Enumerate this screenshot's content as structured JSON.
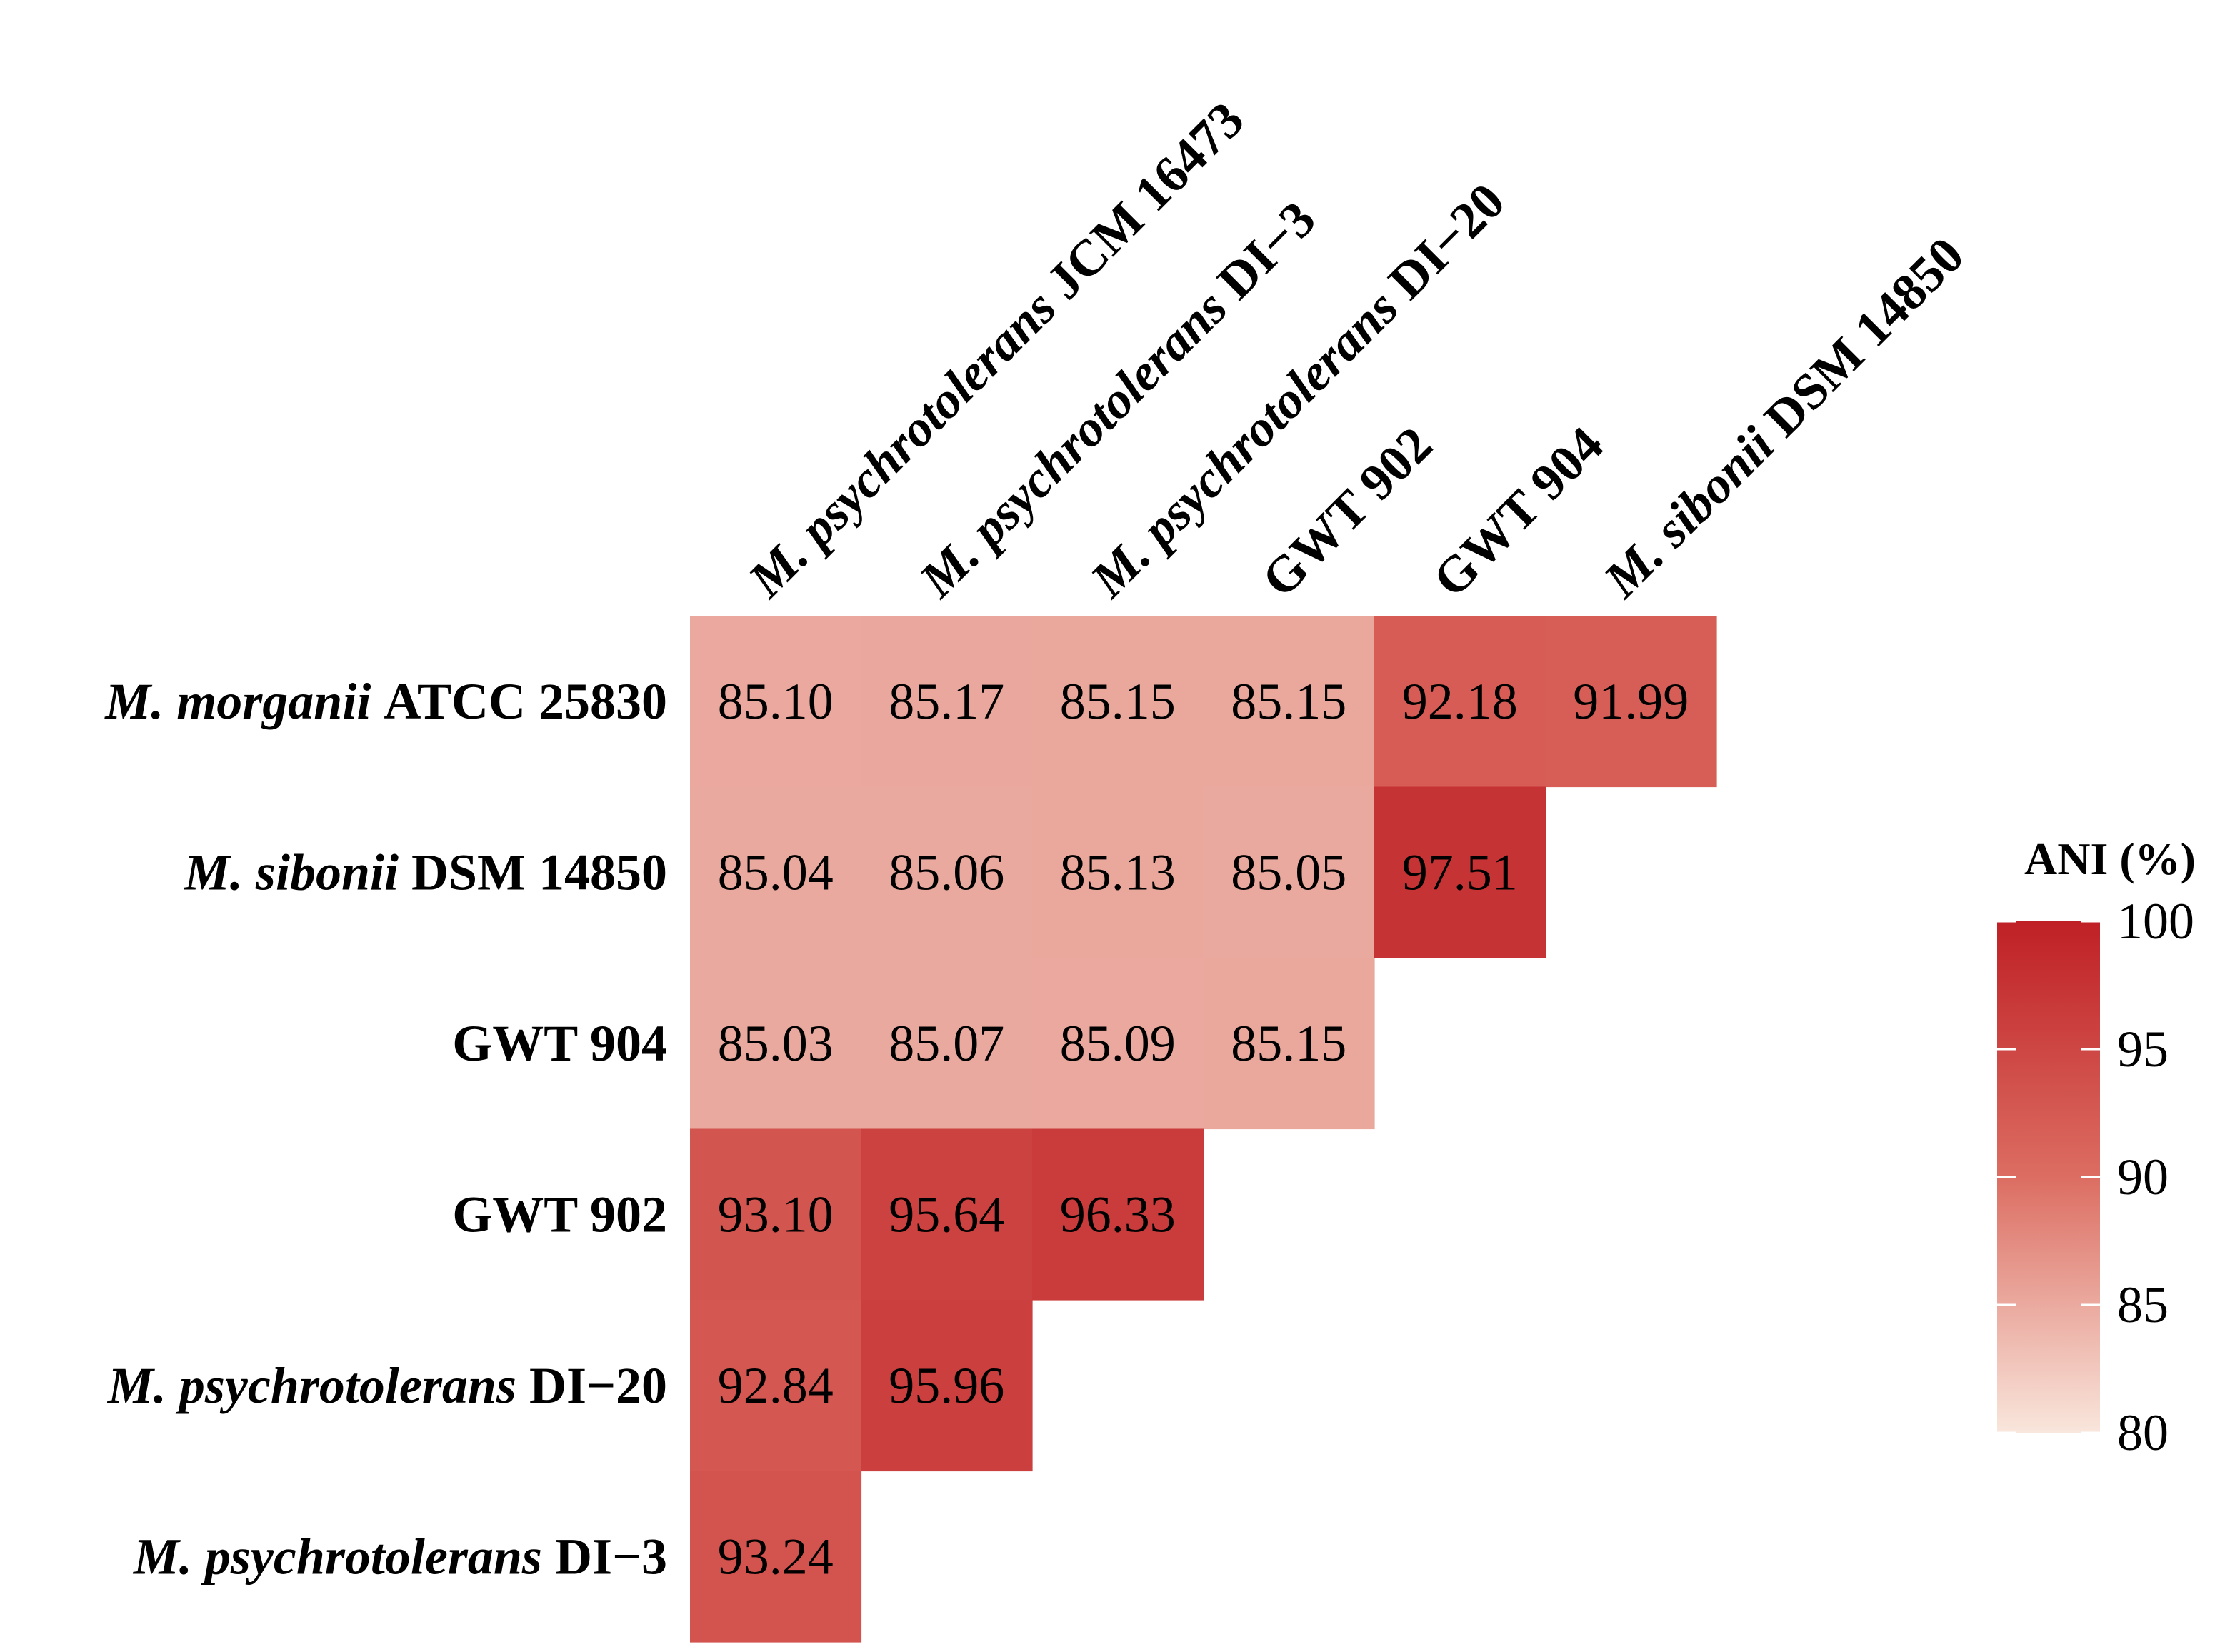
{
  "chart_data": {
    "type": "heatmap",
    "title": "",
    "row_labels": [
      {
        "italic": "M. morganii",
        "plain": "ATCC 25830"
      },
      {
        "italic": "M. sibonii",
        "plain": "DSM 14850"
      },
      {
        "italic": "",
        "plain": "GWT 904"
      },
      {
        "italic": "",
        "plain": "GWT 902"
      },
      {
        "italic": "M. psychrotolerans",
        "plain": "DI−20"
      },
      {
        "italic": "M. psychrotolerans",
        "plain": "DI−3"
      }
    ],
    "col_labels": [
      {
        "italic": "M. psychrotolerans",
        "plain": "JCM 16473"
      },
      {
        "italic": "M. psychrotolerans",
        "plain": "DI−3"
      },
      {
        "italic": "M. psychrotolerans",
        "plain": "DI−20"
      },
      {
        "italic": "",
        "plain": "GWT 902"
      },
      {
        "italic": "",
        "plain": "GWT 904"
      },
      {
        "italic": "M. sibonii",
        "plain": "DSM 14850"
      }
    ],
    "values": [
      [
        "85.10",
        "85.17",
        "85.15",
        "85.15",
        "92.18",
        "91.99"
      ],
      [
        "85.04",
        "85.06",
        "85.13",
        "85.05",
        "97.51",
        null
      ],
      [
        "85.03",
        "85.07",
        "85.09",
        "85.15",
        null,
        null
      ],
      [
        "93.10",
        "95.64",
        "96.33",
        null,
        null,
        null
      ],
      [
        "92.84",
        "95.96",
        null,
        null,
        null,
        null
      ],
      [
        "93.24",
        null,
        null,
        null,
        null,
        null
      ]
    ],
    "colorbar": {
      "title": "ANI (%)",
      "range": [
        80,
        100
      ],
      "ticks": [
        "80",
        "85",
        "90",
        "95",
        "100"
      ],
      "color_low": "#f9e6dc",
      "color_mid": "#dc6d62",
      "color_high": "#bf2026"
    }
  }
}
